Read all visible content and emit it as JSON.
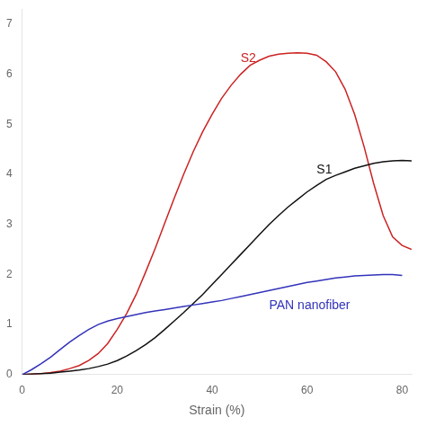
{
  "chart_data": {
    "type": "line",
    "xlabel": "Strain (%)",
    "xlim": [
      0,
      82
    ],
    "ylim": [
      0,
      7.3
    ],
    "xticks": [
      0,
      20,
      40,
      60,
      80
    ],
    "yticks": [
      0,
      1,
      2,
      3,
      4,
      5,
      6,
      7
    ],
    "grid": false,
    "series": [
      {
        "name": "PAN nanofiber",
        "color": "#3333bb",
        "x": [
          0,
          2,
          4,
          6,
          8,
          10,
          12,
          14,
          16,
          18,
          20,
          22,
          24,
          26,
          28,
          30,
          32,
          34,
          36,
          38,
          40,
          42,
          44,
          46,
          48,
          50,
          52,
          54,
          56,
          58,
          60,
          62,
          64,
          66,
          68,
          70,
          72,
          74,
          76,
          78,
          80
        ],
        "values": [
          0,
          0.1,
          0.22,
          0.35,
          0.5,
          0.65,
          0.78,
          0.9,
          1.0,
          1.07,
          1.12,
          1.16,
          1.2,
          1.24,
          1.27,
          1.3,
          1.33,
          1.36,
          1.39,
          1.42,
          1.45,
          1.48,
          1.52,
          1.56,
          1.6,
          1.64,
          1.68,
          1.72,
          1.76,
          1.8,
          1.84,
          1.87,
          1.9,
          1.93,
          1.95,
          1.97,
          1.98,
          1.99,
          2.0,
          2.0,
          1.98
        ]
      },
      {
        "name": "S1",
        "color": "#111111",
        "x": [
          0,
          2,
          4,
          6,
          8,
          10,
          12,
          14,
          16,
          18,
          20,
          22,
          24,
          26,
          28,
          30,
          32,
          34,
          36,
          38,
          40,
          42,
          44,
          46,
          48,
          50,
          52,
          54,
          56,
          58,
          60,
          62,
          64,
          66,
          68,
          70,
          72,
          74,
          76,
          78,
          80,
          82
        ],
        "values": [
          0,
          0.01,
          0.02,
          0.03,
          0.05,
          0.07,
          0.09,
          0.12,
          0.16,
          0.21,
          0.28,
          0.37,
          0.48,
          0.6,
          0.74,
          0.9,
          1.07,
          1.24,
          1.42,
          1.6,
          1.8,
          2.0,
          2.2,
          2.4,
          2.6,
          2.8,
          3.0,
          3.18,
          3.35,
          3.5,
          3.65,
          3.78,
          3.9,
          3.98,
          4.05,
          4.12,
          4.17,
          4.22,
          4.25,
          4.27,
          4.28,
          4.27
        ]
      },
      {
        "name": "S2",
        "color": "#cc2222",
        "x": [
          0,
          2,
          4,
          6,
          8,
          10,
          12,
          14,
          16,
          18,
          20,
          22,
          24,
          26,
          28,
          30,
          32,
          34,
          36,
          38,
          40,
          42,
          44,
          46,
          48,
          50,
          52,
          54,
          56,
          58,
          60,
          62,
          64,
          66,
          68,
          70,
          72,
          74,
          76,
          78,
          80,
          82
        ],
        "values": [
          0,
          0.01,
          0.02,
          0.04,
          0.07,
          0.12,
          0.18,
          0.28,
          0.42,
          0.62,
          0.9,
          1.22,
          1.6,
          2.05,
          2.52,
          3.02,
          3.52,
          4.0,
          4.45,
          4.85,
          5.2,
          5.52,
          5.78,
          6.0,
          6.18,
          6.28,
          6.36,
          6.4,
          6.42,
          6.43,
          6.42,
          6.38,
          6.25,
          6.05,
          5.7,
          5.2,
          4.55,
          3.82,
          3.18,
          2.75,
          2.58,
          2.5
        ]
      }
    ]
  }
}
